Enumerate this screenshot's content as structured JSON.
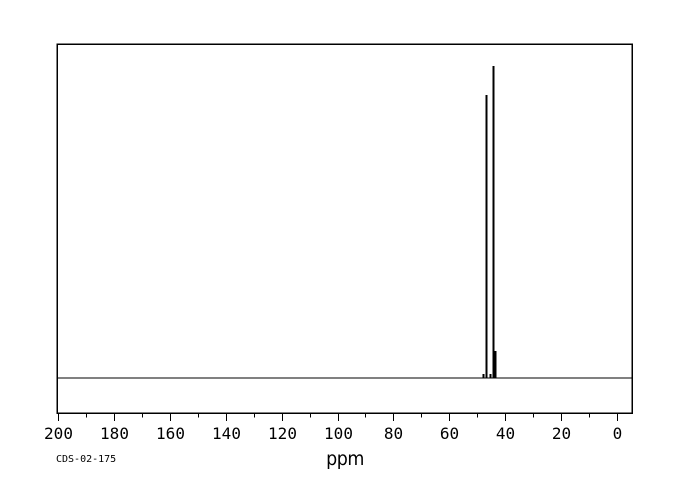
{
  "figure": {
    "x_axis_label": "ppm",
    "sample_id": "CDS-02-175"
  },
  "colors": {
    "line": "#000000",
    "background": "#ffffff"
  },
  "chart_data": {
    "type": "line",
    "subtype": "13C-NMR-spectrum",
    "title": "",
    "xlabel": "ppm",
    "ylabel": "",
    "x_range": [
      200,
      0
    ],
    "x_axis_reversed": true,
    "x_major_ticks": [
      200,
      180,
      160,
      140,
      120,
      100,
      80,
      60,
      40,
      20,
      0
    ],
    "x_minor_tick_interval": 10,
    "grid": false,
    "legend": false,
    "baseline_intensity": 0,
    "peaks": [
      {
        "ppm": 47.8,
        "intensity": 0.013
      },
      {
        "ppm": 46.9,
        "intensity": 0.907
      },
      {
        "ppm": 45.6,
        "intensity": 0.013
      },
      {
        "ppm": 44.5,
        "intensity": 1.0
      },
      {
        "ppm": 43.8,
        "intensity": 0.087
      }
    ],
    "annotation": "CDS-02-175"
  }
}
